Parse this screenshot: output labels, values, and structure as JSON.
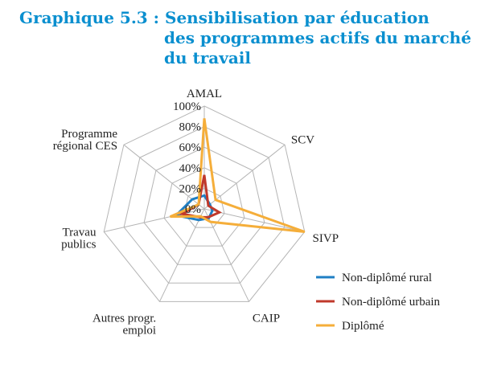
{
  "title": {
    "line1": "Graphique 5.3 : Sensibilisation par éducation",
    "line2": "des programmes actifs du marché",
    "line3": "du travail"
  },
  "chart_data": {
    "type": "radar",
    "categories": [
      [
        "AMAL"
      ],
      [
        "SCV"
      ],
      [
        "SIVP"
      ],
      [
        "CAIP"
      ],
      [
        "Autres progr.",
        "emploi"
      ],
      [
        "Travau",
        "publics"
      ],
      [
        "Programme",
        "régional CES"
      ]
    ],
    "ticks": [
      "0%",
      "20%",
      "40%",
      "60%",
      "80%",
      "100%"
    ],
    "rmax": 100,
    "grid": true,
    "legend_position": "bottom-right",
    "series": [
      {
        "name": "Non-diplômé rural",
        "color": "#1f7fc4",
        "values": [
          13,
          7,
          8,
          10,
          12,
          28,
          15
        ]
      },
      {
        "name": "Non-diplômé urbain",
        "color": "#c0392b",
        "values": [
          33,
          5,
          15,
          9,
          9,
          22,
          7
        ]
      },
      {
        "name": "Diplômé",
        "color": "#f5ae3a",
        "values": [
          88,
          14,
          100,
          14,
          8,
          34,
          7
        ]
      }
    ]
  }
}
